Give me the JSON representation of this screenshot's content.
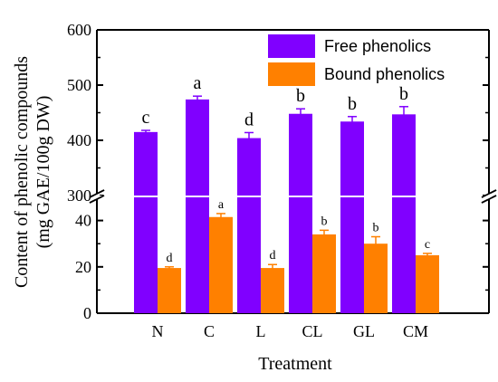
{
  "chart_data": {
    "type": "bar",
    "xlabel": "Treatment",
    "ylabel_lines": [
      "Content of phenolic compounds",
      "(mg GAE/100g DW)"
    ],
    "categories": [
      "N",
      "C",
      "L",
      "CL",
      "GL",
      "CM"
    ],
    "axis_break": true,
    "y_upper_range": [
      300,
      600
    ],
    "y_lower_range": [
      0,
      50
    ],
    "y_upper_ticks": [
      "300",
      "400",
      "500",
      "600"
    ],
    "y_lower_ticks": [
      "0",
      "20",
      "40"
    ],
    "legend_position": "top-right",
    "colors": {
      "free": "#8000ff",
      "bound": "#ff8000"
    },
    "series": [
      {
        "name": "Free phenolics",
        "values": [
          415,
          474,
          404,
          448,
          434,
          447
        ],
        "errors": [
          3,
          6,
          10,
          9,
          9,
          14
        ],
        "letters": [
          "c",
          "a",
          "d",
          "b",
          "b",
          "b"
        ]
      },
      {
        "name": "Bound phenolics",
        "values": [
          19.5,
          41.5,
          19.5,
          34,
          30,
          25
        ],
        "errors": [
          0.5,
          1.5,
          1.5,
          1.8,
          3,
          0.8
        ],
        "letters": [
          "d",
          "a",
          "d",
          "b",
          "b",
          "c"
        ]
      }
    ]
  }
}
